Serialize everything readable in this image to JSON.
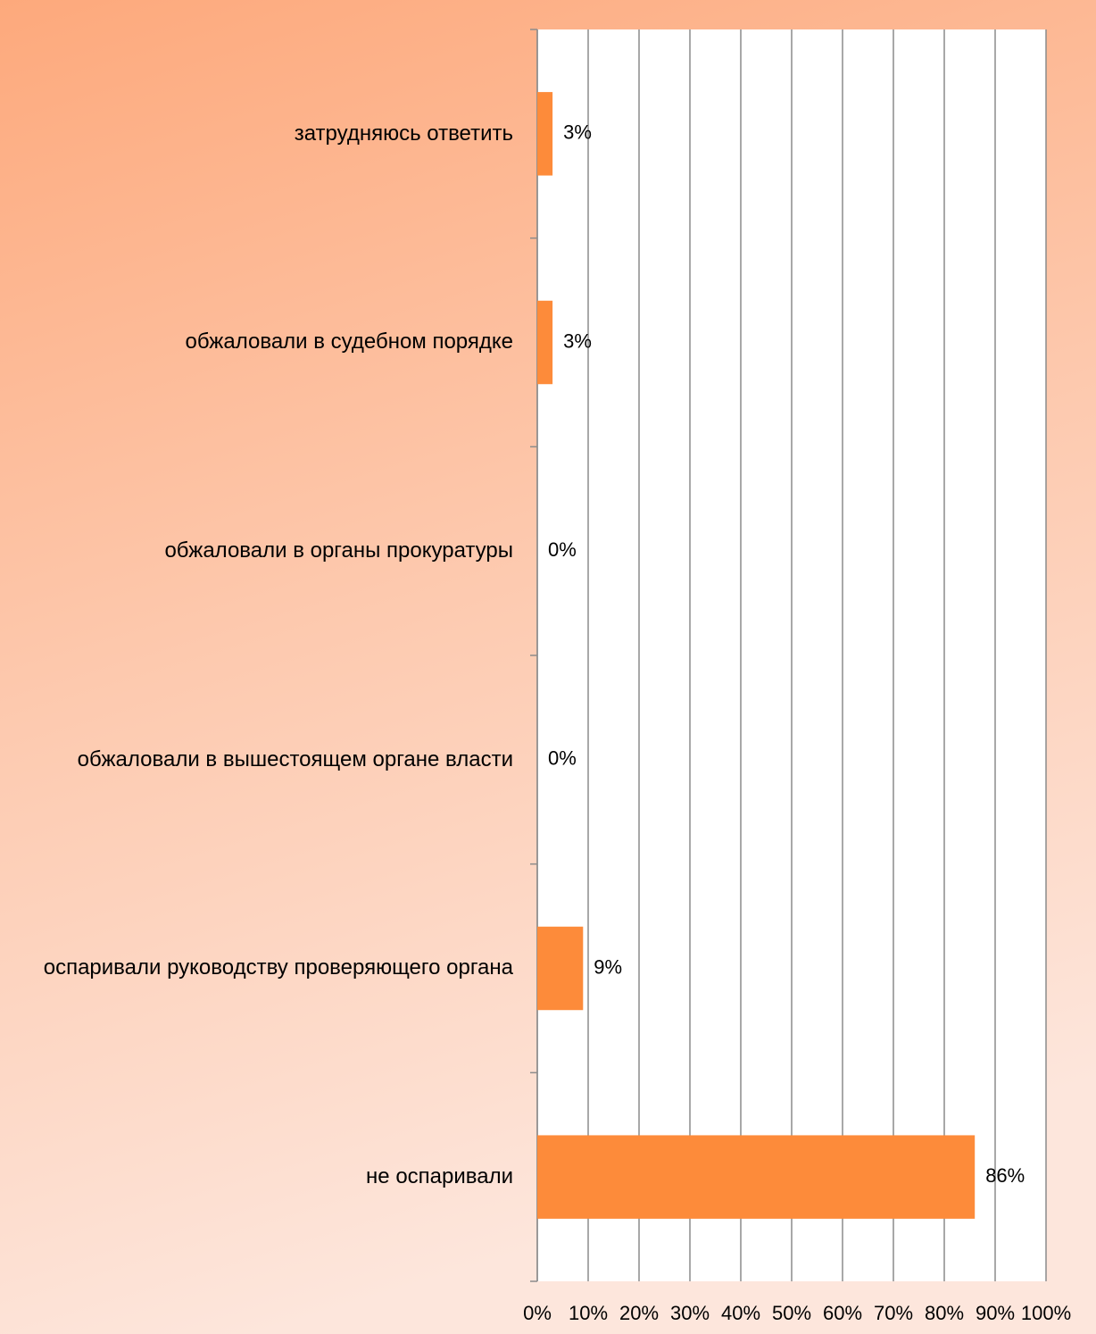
{
  "chart_data": {
    "type": "barh",
    "categories": [
      "затрудняюсь ответить",
      "обжаловали в судебном порядке",
      "обжаловали в органы прокуратуры",
      "обжаловали в вышестоящем органе власти",
      "оспаривали руководству проверяющего органа",
      "не оспаривали"
    ],
    "values": [
      3,
      3,
      0,
      0,
      9,
      86
    ],
    "value_labels": [
      "3%",
      "3%",
      "0%",
      "0%",
      "9%",
      "86%"
    ],
    "color": "#fd8b3a",
    "xlim": [
      0,
      100
    ],
    "xticks": [
      {
        "value": 0,
        "label": "0%"
      },
      {
        "value": 10,
        "label": "10%"
      },
      {
        "value": 20,
        "label": "20%"
      },
      {
        "value": 30,
        "label": "30%"
      },
      {
        "value": 40,
        "label": "40%"
      },
      {
        "value": 50,
        "label": "50%"
      },
      {
        "value": 60,
        "label": "60%"
      },
      {
        "value": 70,
        "label": "70%"
      },
      {
        "value": 80,
        "label": "80%"
      },
      {
        "value": 90,
        "label": "90%"
      },
      {
        "value": 100,
        "label": "100%"
      }
    ],
    "grid": true
  }
}
